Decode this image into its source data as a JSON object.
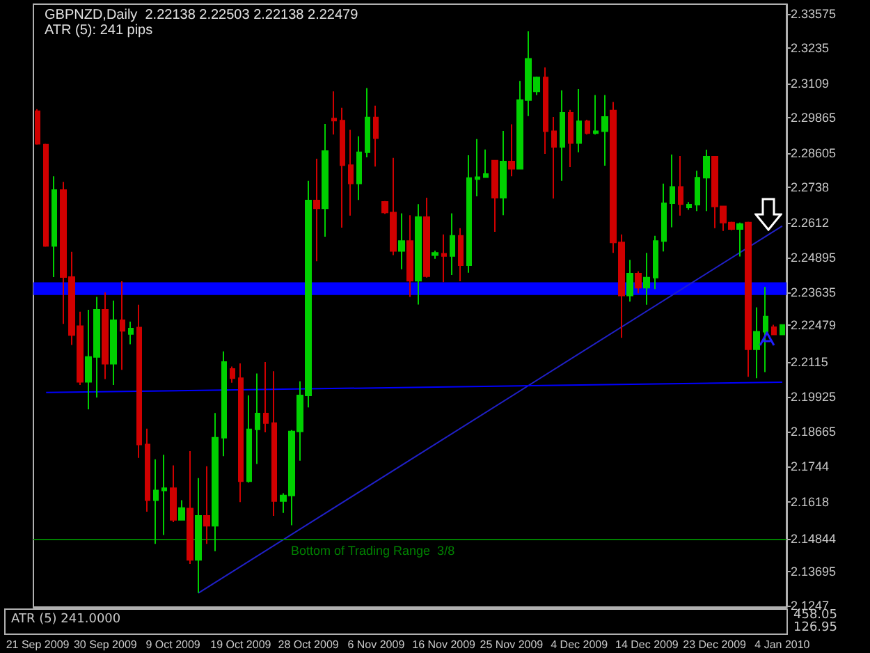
{
  "chart_data": [
    {
      "type": "candlestick",
      "title": "GBPNZD,Daily  2.22138 2.22503 2.22138 2.22479",
      "subtitle": "ATR (5): 241 pips",
      "categories": [
        "21 Sep 2009",
        null,
        null,
        null,
        null,
        null,
        null,
        null,
        "30 Sep 2009",
        null,
        null,
        null,
        null,
        null,
        null,
        null,
        "9 Oct 2009",
        null,
        null,
        null,
        null,
        null,
        null,
        null,
        "19 Oct 2009",
        null,
        null,
        null,
        null,
        null,
        null,
        null,
        "28 Oct 2009",
        null,
        null,
        null,
        null,
        null,
        null,
        null,
        "6 Nov 2009",
        null,
        null,
        null,
        null,
        null,
        null,
        null,
        "16 Nov 2009",
        null,
        null,
        null,
        null,
        null,
        null,
        null,
        "25 Nov 2009",
        null,
        null,
        null,
        null,
        null,
        null,
        null,
        "4 Dec 2009",
        null,
        null,
        null,
        null,
        null,
        null,
        null,
        "14 Dec 2009",
        null,
        null,
        null,
        null,
        null,
        null,
        null,
        "23 Dec 2009",
        null,
        null,
        null,
        null,
        null,
        null,
        null,
        "4 Jan 2010"
      ],
      "ohlc": [
        [
          2.301,
          2.3018,
          2.2891,
          2.2894
        ],
        [
          2.2891,
          2.2894,
          2.2527,
          2.253
        ],
        [
          2.253,
          2.2778,
          2.2419,
          2.2729
        ],
        [
          2.2729,
          2.2758,
          2.2252,
          2.2419
        ],
        [
          2.2419,
          2.2509,
          2.2177,
          2.2212
        ],
        [
          2.2244,
          2.2295,
          2.2034,
          2.2045
        ],
        [
          2.2045,
          2.2302,
          2.1947,
          2.2134
        ],
        [
          2.2134,
          2.2348,
          2.1989,
          2.2302
        ],
        [
          2.2302,
          2.2364,
          2.2055,
          2.211
        ],
        [
          2.211,
          2.2335,
          2.2034,
          2.2265
        ],
        [
          2.2265,
          2.2404,
          2.2088,
          2.2227
        ],
        [
          2.2216,
          2.226,
          2.2179,
          2.2235
        ],
        [
          2.2239,
          2.232,
          2.1774,
          2.1822
        ],
        [
          2.1822,
          2.1878,
          2.1582,
          2.1623
        ],
        [
          2.1623,
          2.1769,
          2.1467,
          2.1658
        ],
        [
          2.1658,
          2.1785,
          2.1499,
          2.1666
        ],
        [
          2.1666,
          2.1747,
          2.1545,
          2.1553
        ],
        [
          2.1553,
          2.1623,
          2.1553,
          2.1595
        ],
        [
          2.1593,
          2.1798,
          2.1396,
          2.141
        ],
        [
          2.141,
          2.1702,
          2.1292,
          2.1567
        ],
        [
          2.1567,
          2.1744,
          2.1467,
          2.1532
        ],
        [
          2.1532,
          2.1934,
          2.1441,
          2.1846
        ],
        [
          2.1846,
          2.2154,
          2.178,
          2.2116
        ],
        [
          2.2091,
          2.21,
          2.2042,
          2.2058
        ],
        [
          2.2058,
          2.2111,
          2.1616,
          2.1691
        ],
        [
          2.1691,
          2.1997,
          2.1686,
          2.1876
        ],
        [
          2.1876,
          2.2075,
          2.1752,
          2.1932
        ],
        [
          2.1932,
          2.2116,
          2.1865,
          2.1898
        ],
        [
          2.1898,
          2.2083,
          2.1567,
          2.162
        ],
        [
          2.162,
          2.1648,
          2.1578,
          2.164
        ],
        [
          2.164,
          2.1873,
          2.1534,
          2.1868
        ],
        [
          2.1868,
          2.2047,
          2.1764,
          2.1997
        ],
        [
          2.1997,
          2.2762,
          2.1954,
          2.2692
        ],
        [
          2.2692,
          2.2841,
          2.2475,
          2.2664
        ],
        [
          2.2664,
          2.2965,
          2.2563,
          2.2868
        ],
        [
          2.2984,
          2.3081,
          2.2927,
          2.2977
        ],
        [
          2.2977,
          2.3023,
          2.2595,
          2.2818
        ],
        [
          2.2818,
          2.2944,
          2.2638,
          2.2753
        ],
        [
          2.2753,
          2.2921,
          2.2694,
          2.2864
        ],
        [
          2.2864,
          2.3093,
          2.2846,
          2.2988
        ],
        [
          2.2988,
          2.303,
          2.2813,
          2.2914
        ],
        [
          2.2687,
          2.269,
          2.2644,
          2.2649
        ],
        [
          2.2649,
          2.2844,
          2.2497,
          2.2512
        ],
        [
          2.2512,
          2.2646,
          2.2447,
          2.2547
        ],
        [
          2.2547,
          2.2639,
          2.2348,
          2.2406
        ],
        [
          2.2406,
          2.2679,
          2.2321,
          2.2633
        ],
        [
          2.2633,
          2.2702,
          2.2417,
          2.2422
        ],
        [
          2.2497,
          2.2513,
          2.2484,
          2.2505
        ],
        [
          2.2502,
          2.2571,
          2.2401,
          2.2494
        ],
        [
          2.2494,
          2.2646,
          2.2426,
          2.2566
        ],
        [
          2.2566,
          2.2593,
          2.2404,
          2.2461
        ],
        [
          2.2461,
          2.2853,
          2.2434,
          2.2772
        ],
        [
          2.2768,
          2.2911,
          2.2707,
          2.2775
        ],
        [
          2.2775,
          2.2874,
          2.2773,
          2.2786
        ],
        [
          2.2834,
          2.2836,
          2.258,
          2.2702
        ],
        [
          2.2702,
          2.294,
          2.2639,
          2.2831
        ],
        [
          2.2831,
          2.2964,
          2.2778,
          2.2805
        ],
        [
          2.2805,
          2.3118,
          2.2803,
          2.305
        ],
        [
          2.305,
          2.3295,
          2.2993,
          2.3197
        ],
        [
          2.3081,
          2.3134,
          2.3068,
          2.3131
        ],
        [
          2.3131,
          2.3167,
          2.2858,
          2.2939
        ],
        [
          2.2939,
          2.299,
          2.2699,
          2.2883
        ],
        [
          2.2883,
          2.3085,
          2.2762,
          2.3005
        ],
        [
          2.3005,
          2.3015,
          2.2811,
          2.2897
        ],
        [
          2.2897,
          2.3089,
          2.2864,
          2.2974
        ],
        [
          2.2974,
          2.298,
          2.2927,
          2.2932
        ],
        [
          2.2932,
          2.3068,
          2.2927,
          2.2939
        ],
        [
          2.2939,
          2.3068,
          2.2816,
          2.299
        ],
        [
          2.3013,
          2.3043,
          2.2505,
          2.2542
        ],
        [
          2.2542,
          2.2571,
          2.2202,
          2.2353
        ],
        [
          2.2353,
          2.248,
          2.2331,
          2.2431
        ],
        [
          2.2431,
          2.2439,
          2.2361,
          2.2381
        ],
        [
          2.2381,
          2.2505,
          2.232,
          2.2417
        ],
        [
          2.2417,
          2.2566,
          2.2376,
          2.2547
        ],
        [
          2.2547,
          2.2752,
          2.251,
          2.2682
        ],
        [
          2.2682,
          2.2856,
          2.2596,
          2.274
        ],
        [
          2.274,
          2.2851,
          2.2638,
          2.2679
        ],
        [
          2.2667,
          2.2686,
          2.2659,
          2.2677
        ],
        [
          2.2677,
          2.2798,
          2.2654,
          2.2773
        ],
        [
          2.2773,
          2.2873,
          2.2654,
          2.2848
        ],
        [
          2.2848,
          2.2851,
          2.2593,
          2.2671
        ],
        [
          2.2671,
          2.2671,
          2.2583,
          2.2613
        ],
        [
          2.2613,
          2.2616,
          2.2586,
          2.259
        ],
        [
          2.259,
          2.2613,
          2.2492,
          2.2608
        ],
        [
          2.2613,
          2.2616,
          2.2063,
          2.2161
        ],
        [
          2.2161,
          2.2311,
          2.2058,
          2.2224
        ],
        [
          2.2224,
          2.2384,
          2.208,
          2.2278
        ],
        [
          2.224,
          2.2249,
          2.2212,
          2.2214
        ],
        [
          2.22138,
          2.22503,
          2.22138,
          2.22479
        ]
      ],
      "colors": [
        "#d00000",
        "#d00000",
        "#00d000",
        "#d00000",
        "#d00000",
        "#d00000",
        "#00d000",
        "#00d000",
        "#d00000",
        "#00d000",
        "#d00000",
        "#00d000",
        "#d00000",
        "#d00000",
        "#00d000",
        "#00d000",
        "#d00000",
        "#00d000",
        "#d00000",
        "#00d000",
        "#d00000",
        "#00d000",
        "#00d000",
        "#d00000",
        "#d00000",
        "#00d000",
        "#00d000",
        "#d00000",
        "#d00000",
        "#00d000",
        "#00d000",
        "#00d000",
        "#00d000",
        "#d00000",
        "#00d000",
        "#d00000",
        "#d00000",
        "#d00000",
        "#00d000",
        "#00d000",
        "#d00000",
        "#d00000",
        "#d00000",
        "#00d000",
        "#d00000",
        "#00d000",
        "#d00000",
        "#00d000",
        "#d00000",
        "#00d000",
        "#d00000",
        "#00d000",
        "#00d000",
        "#00d000",
        "#d00000",
        "#00d000",
        "#d00000",
        "#00d000",
        "#00d000",
        "#00d000",
        "#d00000",
        "#d00000",
        "#00d000",
        "#d00000",
        "#00d000",
        "#d00000",
        "#00d000",
        "#00d000",
        "#d00000",
        "#d00000",
        "#00d000",
        "#d00000",
        "#00d000",
        "#00d000",
        "#00d000",
        "#00d000",
        "#d00000",
        "#00d000",
        "#00d000",
        "#00d000",
        "#d00000",
        "#d00000",
        "#d00000",
        "#00d000",
        "#d00000",
        "#00d000",
        "#00d000",
        "#d00000",
        "#00d000"
      ],
      "series": [
        {
          "type": "line",
          "color": "#2020c8",
          "values": [
            null,
            null,
            null,
            null,
            null,
            null,
            null,
            null,
            null,
            null,
            null,
            null,
            null,
            null,
            null,
            null,
            null,
            null,
            null,
            2.1292,
            null,
            null,
            null,
            null,
            null,
            null,
            null,
            null,
            null,
            null,
            null,
            null,
            null,
            null,
            null,
            null,
            null,
            null,
            null,
            null,
            null,
            null,
            null,
            null,
            null,
            null,
            null,
            null,
            null,
            null,
            null,
            null,
            null,
            null,
            null,
            null,
            null,
            null,
            null,
            null,
            null,
            null,
            null,
            null,
            null,
            null,
            null,
            null,
            null,
            null,
            null,
            null,
            null,
            null,
            null,
            null,
            null,
            null,
            null,
            null,
            null,
            null,
            null,
            null,
            null,
            null,
            null,
            null,
            2.2601
          ]
        },
        {
          "type": "line",
          "color": "#0000ff",
          "values": [
            null,
            2.2007,
            null,
            null,
            null,
            null,
            null,
            null,
            null,
            null,
            null,
            null,
            null,
            null,
            null,
            null,
            null,
            null,
            null,
            null,
            null,
            null,
            null,
            null,
            null,
            null,
            null,
            null,
            null,
            null,
            null,
            null,
            null,
            null,
            null,
            null,
            null,
            null,
            null,
            null,
            null,
            null,
            null,
            null,
            null,
            null,
            null,
            null,
            null,
            null,
            null,
            null,
            null,
            null,
            null,
            null,
            null,
            null,
            null,
            null,
            null,
            null,
            null,
            null,
            null,
            null,
            null,
            null,
            null,
            null,
            null,
            null,
            null,
            null,
            null,
            null,
            null,
            null,
            null,
            null,
            null,
            null,
            null,
            null,
            null,
            null,
            null,
            null,
            2.2044
          ]
        }
      ],
      "ylim": [
        2.1242,
        2.3392
      ],
      "yticks": [
        2.33575,
        2.3235,
        2.3109,
        2.29865,
        2.28605,
        2.2738,
        2.2612,
        2.24895,
        2.23635,
        2.22479,
        2.2115,
        2.19925,
        2.18665,
        2.1744,
        2.1618,
        2.14844,
        2.13695,
        2.1247
      ],
      "ref_lines": [
        {
          "axis": "y",
          "value": 2.14844,
          "label": "Bottom of Trading Range  3/8",
          "color": "#008000"
        }
      ],
      "bands": [
        {
          "axis": "y",
          "from": 2.2355,
          "to": 2.24,
          "color": "#0000ff"
        }
      ]
    },
    {
      "type": "other",
      "title": "ATR (5) 241.0000",
      "annotations": [
        "458.05",
        "126.95"
      ]
    }
  ]
}
